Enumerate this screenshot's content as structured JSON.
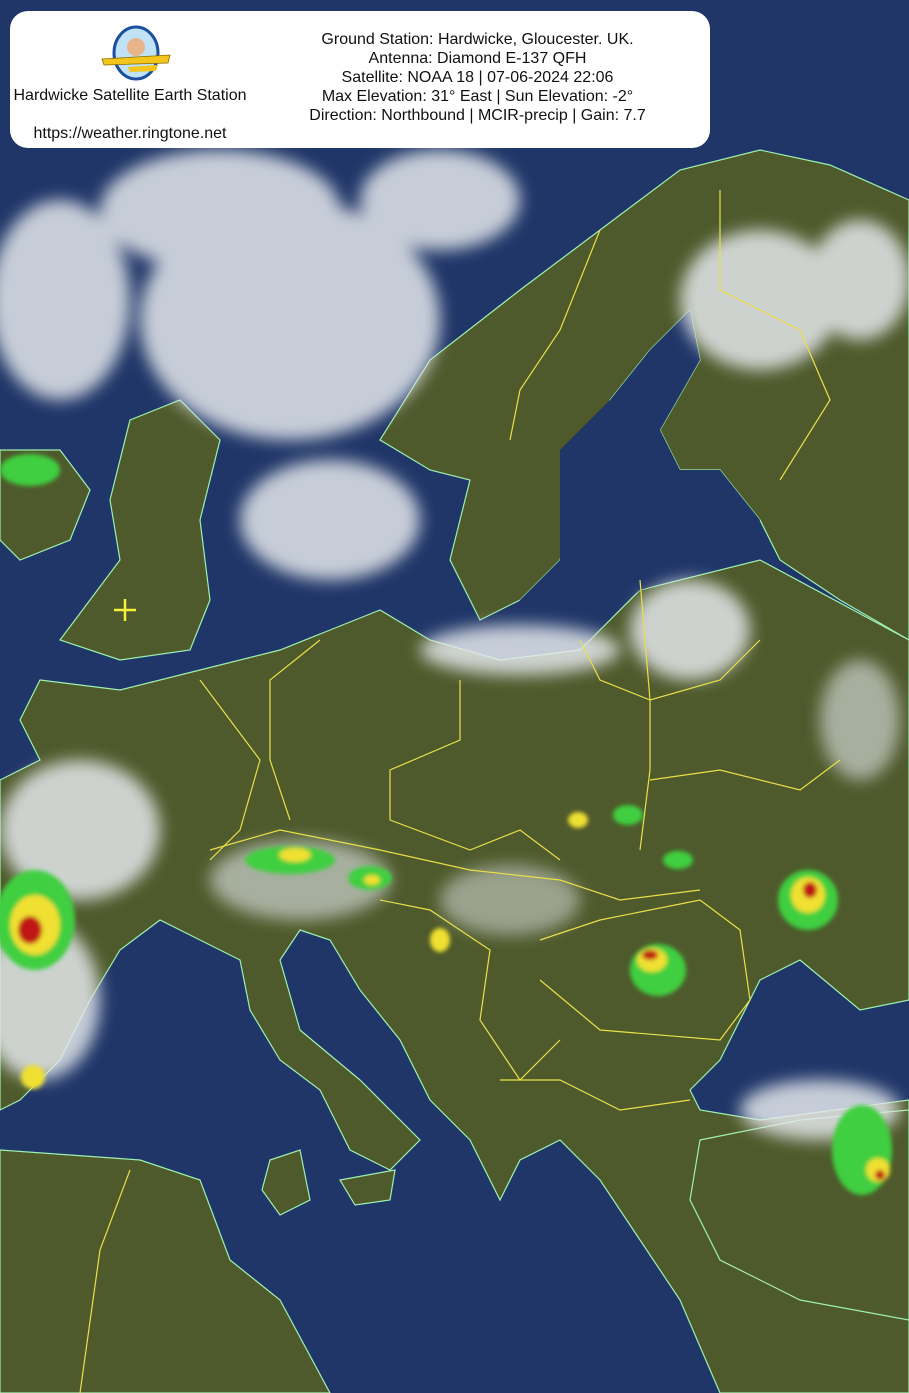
{
  "header": {
    "station_name": "Hardwicke Satellite Earth Station",
    "station_url": "https://weather.ringtone.net",
    "lines": [
      "Ground Station: Hardwicke, Gloucester. UK.",
      "Antenna: Diamond E-137 QFH",
      "Satellite: NOAA 18 | 07-06-2024 22:06",
      "Max Elevation: 31° East | Sun Elevation: -2°",
      "Direction: Northbound | MCIR-precip | Gain: 7.7"
    ]
  },
  "map": {
    "type": "satellite-image",
    "mode": "MCIR-precip",
    "region": "Europe",
    "ground_station_marker": "cross-marker",
    "colors": {
      "sea": "#1f3566",
      "land": "#4f5a2c",
      "cloud": "#e8ecef",
      "coastline": "#9ef0b0",
      "borders": "#e8e04a",
      "precip_light": "#3fcf3f",
      "precip_medium": "#f0e030",
      "precip_heavy": "#c01818",
      "marker": "#f5f03c"
    }
  }
}
